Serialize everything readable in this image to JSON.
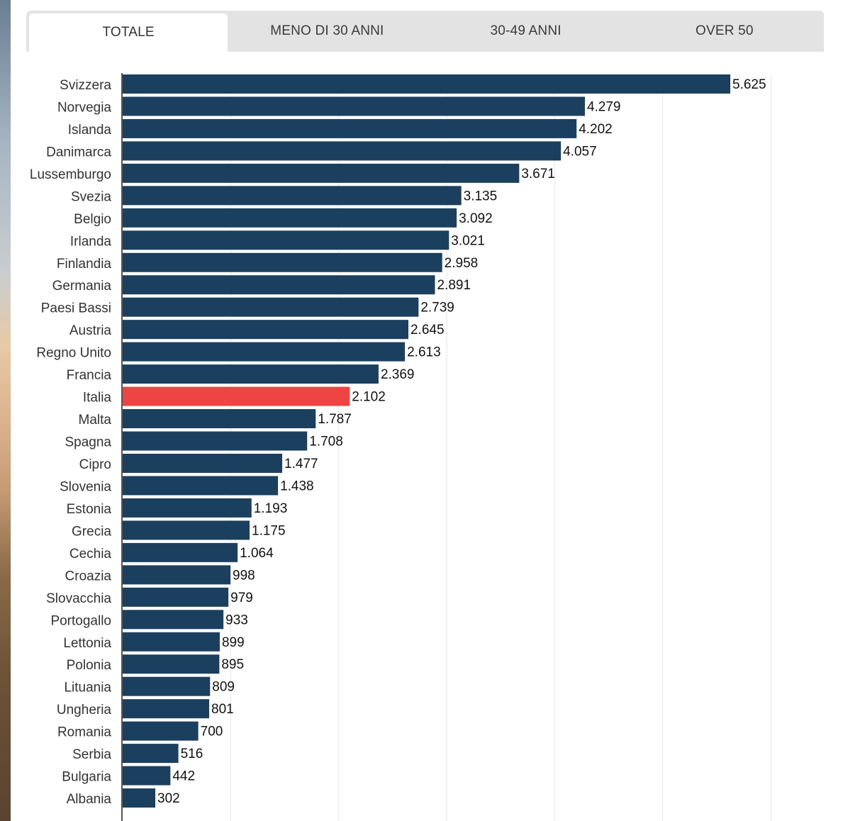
{
  "tabs": [
    {
      "label": "TOTALE",
      "active": true
    },
    {
      "label": "MENO DI 30 ANNI",
      "active": false
    },
    {
      "label": "30-49 ANNI",
      "active": false
    },
    {
      "label": "OVER 50",
      "active": false
    }
  ],
  "colors": {
    "bar": "#1b3f5e",
    "highlight": "#ef4444",
    "grid": "#e6e6e6",
    "axis": "#555555"
  },
  "chart_data": {
    "type": "bar",
    "orientation": "horizontal",
    "categories": [
      "Svizzera",
      "Norvegia",
      "Islanda",
      "Danimarca",
      "Lussemburgo",
      "Svezia",
      "Belgio",
      "Irlanda",
      "Finlandia",
      "Germania",
      "Paesi Bassi",
      "Austria",
      "Regno Unito",
      "Francia",
      "Italia",
      "Malta",
      "Spagna",
      "Cipro",
      "Slovenia",
      "Estonia",
      "Grecia",
      "Cechia",
      "Croazia",
      "Slovacchia",
      "Portogallo",
      "Lettonia",
      "Polonia",
      "Lituania",
      "Ungheria",
      "Romania",
      "Serbia",
      "Bulgaria",
      "Albania"
    ],
    "values": [
      5625,
      4279,
      4202,
      4057,
      3671,
      3135,
      3092,
      3021,
      2958,
      2891,
      2739,
      2645,
      2613,
      2369,
      2102,
      1787,
      1708,
      1477,
      1438,
      1193,
      1175,
      1064,
      998,
      979,
      933,
      899,
      895,
      809,
      801,
      700,
      516,
      442,
      302
    ],
    "value_labels": [
      "5.625",
      "4.279",
      "4.202",
      "4.057",
      "3.671",
      "3.135",
      "3.092",
      "3.021",
      "2.958",
      "2.891",
      "2.739",
      "2.645",
      "2.613",
      "2.369",
      "2.102",
      "1.787",
      "1.708",
      "1.477",
      "1.438",
      "1.193",
      "1.175",
      "1.064",
      "998",
      "979",
      "933",
      "899",
      "895",
      "809",
      "801",
      "700",
      "516",
      "442",
      "302"
    ],
    "highlight": "Italia",
    "xlim": [
      0,
      6000
    ],
    "grid_step": 1000,
    "grid": true,
    "title": "",
    "xlabel": "",
    "ylabel": ""
  }
}
